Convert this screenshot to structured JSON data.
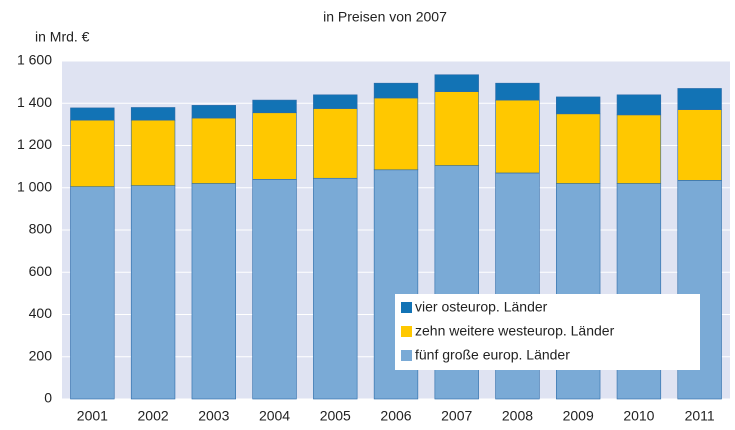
{
  "chart_data": {
    "type": "stacked_bar",
    "title": "in Preisen von 2007",
    "y_label": "in Mrd. €",
    "categories": [
      "2001",
      "2002",
      "2003",
      "2004",
      "2005",
      "2006",
      "2007",
      "2008",
      "2009",
      "2010",
      "2011"
    ],
    "series": [
      {
        "name": "fünf große europ. Länder",
        "color": "#7aaad6",
        "values": [
          1005,
          1010,
          1020,
          1040,
          1045,
          1085,
          1105,
          1070,
          1020,
          1020,
          1035
        ]
      },
      {
        "name": "zehn weitere westeurop. Länder",
        "color": "#ffc800",
        "values": [
          315,
          310,
          310,
          315,
          330,
          340,
          350,
          345,
          330,
          325,
          335
        ]
      },
      {
        "name": "vier osteurop. Länder",
        "color": "#1273b5",
        "values": [
          58,
          60,
          60,
          60,
          65,
          70,
          80,
          80,
          80,
          95,
          100
        ]
      }
    ],
    "ylim": [
      0,
      1600
    ],
    "yticks": [
      0,
      200,
      400,
      600,
      800,
      {
        "value": 1000,
        "label": "1 000"
      },
      {
        "value": 1200,
        "label": "1 200"
      },
      {
        "value": 1400,
        "label": "1 400"
      },
      {
        "value": 1600,
        "label": "1 600"
      }
    ],
    "grid": true,
    "legend": "lower right"
  }
}
